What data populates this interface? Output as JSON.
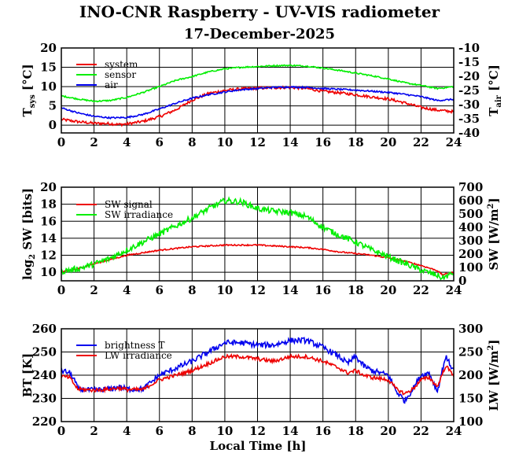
{
  "figure": {
    "title": "INO-CNR Raspberry - UV-VIS radiometer",
    "date": "17-December-2025",
    "x_axis_label": "Local Time [h]"
  },
  "colors": {
    "red": "#ee0000",
    "green": "#00ee00",
    "blue": "#0000ee"
  },
  "chart_data": [
    {
      "type": "line",
      "panel": "temperature",
      "x_ticks": [
        0,
        2,
        4,
        6,
        8,
        10,
        12,
        14,
        16,
        18,
        20,
        22,
        24
      ],
      "xlim": [
        0,
        24
      ],
      "ylim": [
        -2,
        20
      ],
      "y_ticks": [
        0,
        5,
        10,
        15,
        20
      ],
      "ylabel": {
        "base": "T",
        "sub": "sys",
        "unit": " [°C]"
      },
      "y2lim": [
        -40,
        -10
      ],
      "y2_ticks": [
        -40,
        -35,
        -30,
        -25,
        -20,
        -15,
        -10
      ],
      "y2label": {
        "base": "T",
        "sub": "air",
        "unit": " [°C]"
      },
      "legend": [
        "system",
        "sensor",
        "air"
      ],
      "series": [
        {
          "name": "system",
          "color": "red",
          "axis": "left",
          "noise": 0.35,
          "x": [
            0,
            1,
            2,
            3,
            3.5,
            4,
            5,
            6,
            7,
            8,
            9,
            10,
            11,
            12,
            13,
            14,
            15,
            16,
            17,
            18,
            19,
            20,
            21,
            22,
            23,
            24
          ],
          "y": [
            1.5,
            0.9,
            0.5,
            0.4,
            0.2,
            0.3,
            1.0,
            2.2,
            4.0,
            6.5,
            8.2,
            9.0,
            9.4,
            9.6,
            9.7,
            9.8,
            9.5,
            8.8,
            8.4,
            7.9,
            7.3,
            6.8,
            5.8,
            4.6,
            3.9,
            3.5
          ]
        },
        {
          "name": "sensor",
          "color": "green",
          "axis": "left",
          "noise": 0.18,
          "x": [
            0,
            1,
            2,
            3,
            4,
            5,
            6,
            7,
            8,
            9,
            10,
            11,
            12,
            13,
            14,
            15,
            16,
            17,
            18,
            19,
            20,
            21,
            22,
            23,
            24
          ],
          "y": [
            7.6,
            6.8,
            6.2,
            6.4,
            7.2,
            8.5,
            10.0,
            11.6,
            12.6,
            13.8,
            14.6,
            15.0,
            15.2,
            15.4,
            15.5,
            15.3,
            14.8,
            14.2,
            13.5,
            12.8,
            12.0,
            11.0,
            10.3,
            9.5,
            10.0
          ]
        },
        {
          "name": "air",
          "color": "blue",
          "axis": "left",
          "noise": 0.2,
          "x": [
            0,
            1,
            2,
            3,
            4,
            5,
            6,
            7,
            8,
            9,
            10,
            11,
            12,
            13,
            14,
            15,
            16,
            17,
            18,
            19,
            20,
            21,
            22,
            23,
            24
          ],
          "y": [
            4.5,
            3.2,
            2.3,
            1.9,
            2.0,
            2.8,
            4.2,
            5.7,
            7.0,
            7.9,
            8.6,
            9.2,
            9.5,
            9.8,
            9.9,
            9.8,
            9.5,
            9.3,
            9.1,
            8.8,
            8.5,
            8.0,
            7.4,
            6.4,
            6.7
          ]
        }
      ]
    },
    {
      "type": "line",
      "panel": "shortwave",
      "x_ticks": [
        0,
        2,
        4,
        6,
        8,
        10,
        12,
        14,
        16,
        18,
        20,
        22,
        24
      ],
      "xlim": [
        0,
        24
      ],
      "ylim": [
        9,
        20
      ],
      "y_ticks": [
        10,
        12,
        14,
        16,
        18,
        20
      ],
      "ylabel": {
        "prefix": "log",
        "sub": "2",
        "suffix": " SW [bits]"
      },
      "y2lim": [
        0,
        700
      ],
      "y2_ticks": [
        0,
        100,
        200,
        300,
        400,
        500,
        600,
        700
      ],
      "y2label": {
        "base": "SW [W/m",
        "sup": "2",
        "end": "]"
      },
      "legend": [
        "SW signal",
        "SW irradiance"
      ],
      "series": [
        {
          "name": "SW signal",
          "color": "red",
          "axis": "left",
          "noise": 0.08,
          "x": [
            0,
            1,
            2,
            3,
            4,
            5,
            6,
            7,
            8,
            9,
            10,
            11,
            12,
            13,
            14,
            15,
            16,
            17,
            18,
            19,
            20,
            21,
            22,
            23,
            23.3,
            24
          ],
          "y": [
            10.0,
            10.4,
            11.0,
            11.5,
            12.0,
            12.3,
            12.6,
            12.8,
            13.0,
            13.1,
            13.2,
            13.2,
            13.2,
            13.1,
            13.0,
            12.9,
            12.7,
            12.4,
            12.2,
            12.0,
            11.7,
            11.3,
            10.8,
            10.2,
            9.7,
            10.0
          ]
        },
        {
          "name": "SW irradiance",
          "color": "green",
          "axis": "right",
          "noise": 22,
          "x": [
            0,
            1,
            2,
            3,
            4,
            5,
            6,
            7,
            8,
            9,
            10,
            11,
            12,
            13,
            14,
            15,
            16,
            17,
            18,
            19,
            20,
            21,
            22,
            23,
            23.3,
            24
          ],
          "y": [
            70,
            90,
            125,
            170,
            230,
            290,
            350,
            410,
            470,
            540,
            600,
            590,
            540,
            520,
            510,
            480,
            400,
            340,
            290,
            230,
            180,
            130,
            80,
            40,
            20,
            60
          ]
        }
      ]
    },
    {
      "type": "line",
      "panel": "longwave",
      "x_ticks": [
        0,
        2,
        4,
        6,
        8,
        10,
        12,
        14,
        16,
        18,
        20,
        22,
        24
      ],
      "xlim": [
        0,
        24
      ],
      "ylim": [
        220,
        260
      ],
      "y_ticks": [
        220,
        230,
        240,
        250,
        260
      ],
      "ylabel": {
        "base": "BT [K]"
      },
      "y2lim": [
        100,
        300
      ],
      "y2_ticks": [
        100,
        150,
        200,
        250,
        300
      ],
      "y2label": {
        "base": "LW [W/m",
        "sup": "2",
        "end": "]"
      },
      "legend": [
        "brightness T",
        "LW irradiance"
      ],
      "series": [
        {
          "name": "brightness T",
          "color": "blue",
          "axis": "left",
          "noise": 1.2,
          "x": [
            0,
            0.5,
            0.8,
            1,
            2,
            3,
            3.5,
            4,
            5,
            5.5,
            6,
            7,
            8,
            9,
            10,
            11,
            12,
            13,
            14,
            15,
            16,
            17,
            17.5,
            18,
            18.5,
            19,
            20,
            20.5,
            21,
            21.5,
            22,
            22.5,
            23,
            23.5,
            24
          ],
          "y": [
            242,
            241,
            238,
            234,
            233.5,
            234,
            235,
            234,
            234,
            237,
            240,
            243,
            246,
            250,
            254,
            254,
            253,
            253,
            255,
            255,
            252,
            248,
            245,
            248,
            244,
            242,
            240,
            233,
            229,
            234,
            240,
            241,
            233,
            248,
            242
          ]
        },
        {
          "name": "LW irradiance",
          "color": "red",
          "axis": "left",
          "noise": 0.8,
          "x": [
            0,
            0.5,
            0.8,
            1,
            2,
            3,
            3.5,
            4,
            5,
            5.5,
            6,
            7,
            8,
            9,
            10,
            11,
            12,
            13,
            14,
            15,
            16,
            17,
            17.5,
            18,
            18.5,
            19,
            20,
            20.5,
            21,
            21.5,
            22,
            22.5,
            23,
            23.5,
            24
          ],
          "y": [
            239.5,
            239,
            236,
            234,
            233.5,
            234,
            234.5,
            233.8,
            233.8,
            236,
            238,
            240,
            242,
            245,
            248,
            248,
            247,
            246,
            248,
            248,
            246,
            243,
            241,
            242,
            240,
            239,
            238,
            234,
            232,
            234,
            238,
            239,
            235,
            244,
            240
          ]
        }
      ]
    }
  ]
}
